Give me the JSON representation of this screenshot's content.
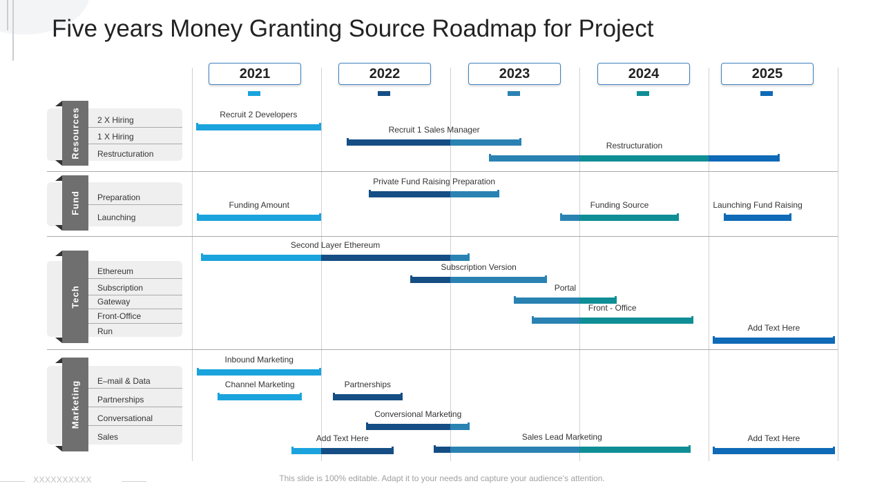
{
  "title": "Five years Money Granting Source Roadmap for Project",
  "years": [
    "2021",
    "2022",
    "2023",
    "2024",
    "2025"
  ],
  "categories": [
    {
      "name": "Resources",
      "items": [
        "2 X Hiring",
        "1 X Hiring",
        "Restructuration"
      ]
    },
    {
      "name": "Fund",
      "items": [
        "Preparation",
        "Launching"
      ]
    },
    {
      "name": "Tech",
      "items": [
        "Ethereum",
        "Subscription",
        "Gateway",
        "Front-Office",
        "Run"
      ]
    },
    {
      "name": "Marketing",
      "items": [
        "E–mail & Data",
        "Partnerships",
        "Conversational",
        "Sales"
      ]
    }
  ],
  "tasks": [
    {
      "label": "Recruit 2 Developers",
      "start": 2021.03,
      "end": 2022.0
    },
    {
      "label": "Recruit 1 Sales Manager",
      "start": 2022.2,
      "end": 2023.55
    },
    {
      "label": "Restructuration",
      "start": 2023.3,
      "end": 2025.55
    },
    {
      "label": "Private Fund Raising Preparation",
      "start": 2022.37,
      "end": 2023.38
    },
    {
      "label": "Funding Amount",
      "start": 2021.04,
      "end": 2022.0
    },
    {
      "label": "Funding Source",
      "start": 2023.85,
      "end": 2024.77
    },
    {
      "label": "Launching Fund Raising",
      "start": 2025.12,
      "end": 2025.64
    },
    {
      "label": "Second Layer Ethereum",
      "start": 2021.07,
      "end": 2023.15
    },
    {
      "label": "Subscription Version",
      "start": 2022.69,
      "end": 2023.75
    },
    {
      "label": "Portal",
      "start": 2023.49,
      "end": 2024.29
    },
    {
      "label": "Front - Office",
      "start": 2023.63,
      "end": 2024.88
    },
    {
      "label": "Add Text Here",
      "start": 2025.03,
      "end": 2025.98
    },
    {
      "label": "Inbound Marketing",
      "start": 2021.04,
      "end": 2022.0
    },
    {
      "label": "Channel Marketing",
      "start": 2021.2,
      "end": 2021.85
    },
    {
      "label": "Partnerships",
      "start": 2022.09,
      "end": 2022.63
    },
    {
      "label": "Conversional  Marketing",
      "start": 2022.35,
      "end": 2023.15
    },
    {
      "label": "Add Text Here",
      "start": 2021.77,
      "end": 2022.56
    },
    {
      "label": "Sales Lead Marketing",
      "start": 2022.87,
      "end": 2024.86
    },
    {
      "label": "Add Text Here",
      "start": 2025.03,
      "end": 2025.98
    }
  ],
  "colors": {
    "y2021": "#1aa3dc",
    "y2022": "#154e84",
    "y2023": "#2a82b3",
    "y2024": "#0f8e96",
    "y2025": "#0f6ab7"
  },
  "footer": "This slide is 100% editable. Adapt it to your needs and capture your audience’s attention.",
  "footer_mark": "XXXXXXXXXX"
}
